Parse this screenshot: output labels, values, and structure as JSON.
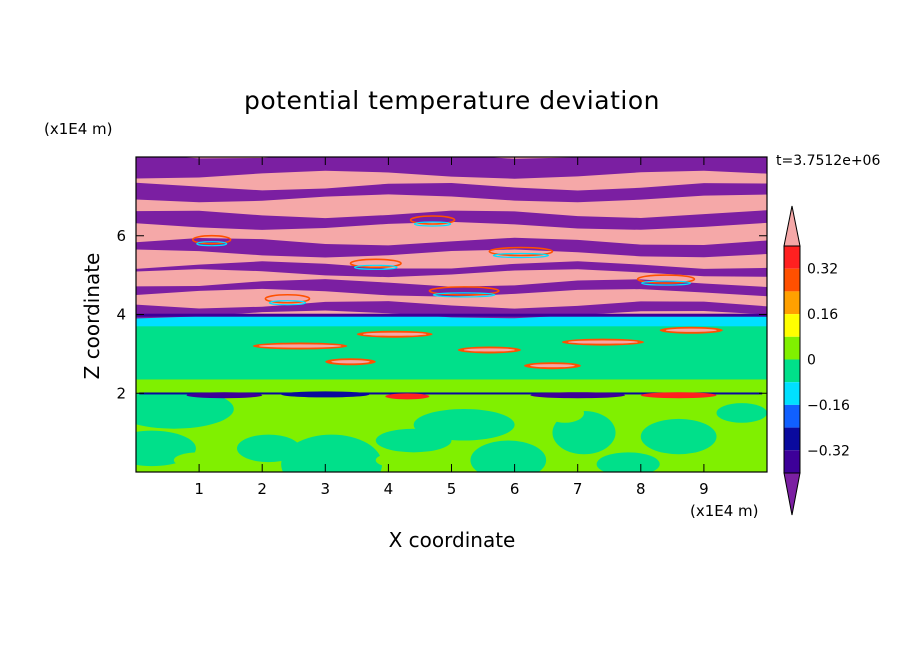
{
  "chart_data": {
    "type": "heatmap",
    "title": "potential temperature deviation",
    "xlabel": "X coordinate",
    "ylabel": "Z coordinate",
    "x_unit": "(x1E4 m)",
    "z_unit": "(x1E4 m)",
    "time_label": "t=3.7512e+06",
    "xlim": [
      0,
      10
    ],
    "ylim": [
      0,
      8
    ],
    "x_ticks": [
      "1",
      "2",
      "3",
      "4",
      "5",
      "6",
      "7",
      "8",
      "9"
    ],
    "y_ticks": [
      "2",
      "4",
      "6"
    ],
    "colorbar": {
      "levels": [
        -0.4,
        -0.32,
        -0.24,
        -0.16,
        -0.08,
        0,
        0.08,
        0.16,
        0.24,
        0.32,
        0.4
      ],
      "tick_labels": [
        "0.32",
        "0.16",
        "0",
        "−0.16",
        "−0.32"
      ],
      "colors": [
        "#7b1fa2",
        "#3d0099",
        "#0a0a9e",
        "#1060ff",
        "#00e0ff",
        "#00e08a",
        "#80f000",
        "#ffff00",
        "#ffa000",
        "#ff5000",
        "#ff2020",
        "#f5a8a8"
      ],
      "extend": "both"
    },
    "regions": [
      {
        "z_range": [
          4,
          8
        ],
        "description": "alternating bands of positive (>0.4) and negative (<-0.4) deviation"
      },
      {
        "z_range": [
          2,
          4
        ],
        "description": "near zero, 0 to -0.08"
      },
      {
        "z_range": [
          0,
          2
        ],
        "description": "mixed 0 to 0.08 and 0 to -0.08"
      }
    ]
  }
}
